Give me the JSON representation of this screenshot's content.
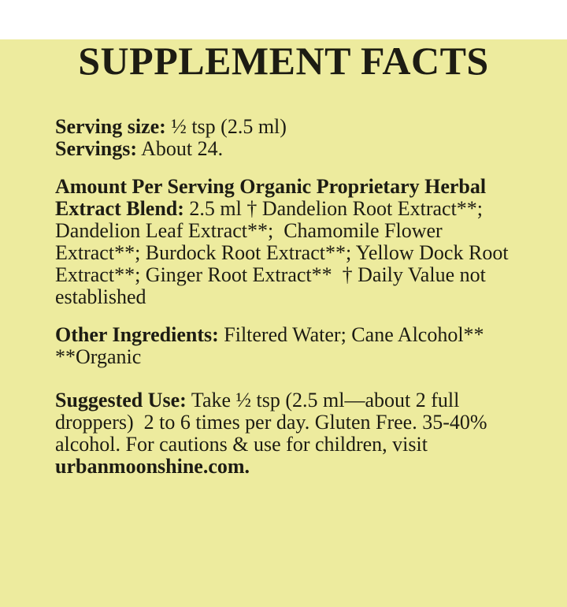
{
  "page": {
    "background_color": "#edeb9e",
    "text_color": "#1d1c13"
  },
  "title": "SUPPLEMENT FACTS",
  "serving": {
    "size_label": "Serving size:",
    "size_value": " ½ tsp (2.5 ml)",
    "servings_label": "Servings:",
    "servings_value": " About 24."
  },
  "blend": {
    "line1_bold": "Amount Per Serving Organic Proprietary Herbal",
    "line2_bold": "Extract Blend:",
    "line2_rest": " 2.5 ml † Dandelion Root Extract**;",
    "line3": "Dandelion Leaf Extract**;  Chamomile Flower",
    "line4": "Extract**; Burdock Root Extract**; Yellow Dock Root",
    "line5": "Extract**; Ginger Root Extract**  † Daily Value not",
    "line6": "established"
  },
  "other_ingredients": {
    "label": "Other Ingredients:",
    "line1_rest": " Filtered Water; Cane Alcohol**",
    "line2": "**Organic"
  },
  "suggested_use": {
    "label": "Suggested Use:",
    "line1_rest": " Take ½ tsp (2.5 ml—about 2 full",
    "line2": "droppers)  2 to 6 times per day. Gluten Free. 35-40%",
    "line3": "alcohol. For cautions & use for children, visit",
    "line4_bold": "urbanmoonshine.com."
  }
}
